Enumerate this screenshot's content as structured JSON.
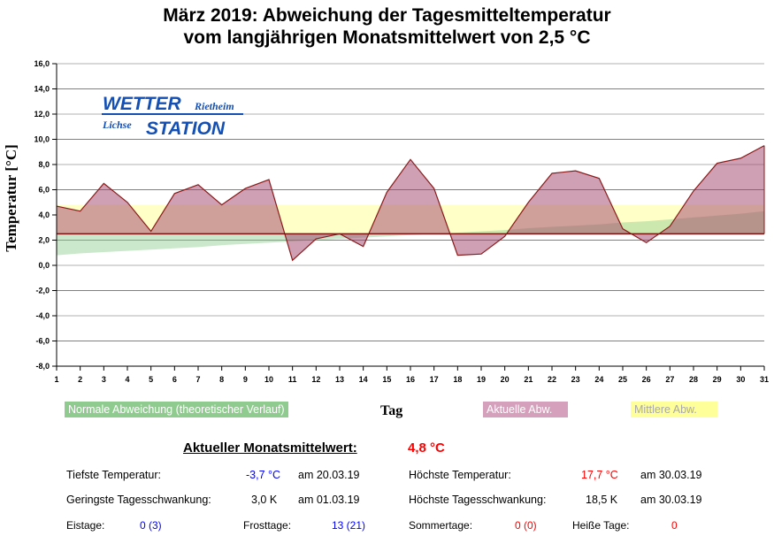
{
  "title_line1": "März 2019: Abweichung der Tagesmitteltemperatur",
  "title_line2": "vom langjährigen Monatsmittelwert von 2,5 °C",
  "logo": {
    "wetter": "WETTER",
    "rietheim": "Rietheim",
    "lichse": "Lichse",
    "station": "STATION"
  },
  "chart_data": {
    "type": "area",
    "xlabel": "Tag",
    "ylabel": "Temperatur [°C]",
    "ylim": [
      -8,
      16
    ],
    "ystep": 2,
    "xlim": [
      1,
      31
    ],
    "baseline": 2.5,
    "mean_deviation_level": 4.8,
    "x": [
      1,
      2,
      3,
      4,
      5,
      6,
      7,
      8,
      9,
      10,
      11,
      12,
      13,
      14,
      15,
      16,
      17,
      18,
      19,
      20,
      21,
      22,
      23,
      24,
      25,
      26,
      27,
      28,
      29,
      30,
      31
    ],
    "series": [
      {
        "name": "Aktuelle Abw.",
        "color": "#b0607f",
        "values": [
          4.7,
          4.3,
          6.5,
          5.0,
          2.7,
          5.7,
          6.4,
          4.8,
          6.1,
          6.8,
          0.4,
          2.1,
          2.5,
          1.5,
          5.8,
          8.4,
          6.1,
          0.8,
          0.9,
          2.3,
          5.0,
          7.3,
          7.5,
          6.9,
          2.9,
          1.8,
          3.1,
          5.9,
          8.1,
          8.5,
          9.5
        ]
      },
      {
        "name": "Normale Abweichung (theoretischer Verlauf)",
        "color": "#8fcb8f",
        "values": [
          0.8,
          0.95,
          1.05,
          1.15,
          1.25,
          1.35,
          1.45,
          1.6,
          1.7,
          1.8,
          1.9,
          2.0,
          2.1,
          2.2,
          2.3,
          2.4,
          2.5,
          2.6,
          2.7,
          2.8,
          2.95,
          3.05,
          3.15,
          3.25,
          3.4,
          3.5,
          3.65,
          3.8,
          3.95,
          4.1,
          4.3
        ]
      },
      {
        "name": "Mittlere Abw.",
        "color": "#ffff99"
      }
    ],
    "legend": [
      "Normale Abweichung (theoretischer Verlauf)",
      "Aktuelle Abw.",
      "Mittlere Abw."
    ],
    "grid": true
  },
  "stats": {
    "monthly_label": "Aktueller Monatsmittelwert:",
    "monthly_value": "4,8 °C",
    "min_label": "Tiefste Temperatur:",
    "min_value": "-3,7 °C",
    "min_date": "am 20.03.19",
    "max_label": "Höchste Temperatur:",
    "max_value": "17,7 °C",
    "max_date": "am 30.03.19",
    "minrange_label": "Geringste Tagesschwankung:",
    "minrange_value": "3,0 K",
    "minrange_date": "am 01.03.19",
    "maxrange_label": "Höchste Tagesschwankung:",
    "maxrange_value": "18,5 K",
    "maxrange_date": "am 30.03.19",
    "eis_label": "Eistage:",
    "eis_value": "0 (3)",
    "frost_label": "Frosttage:",
    "frost_value": "13 (21)",
    "sommer_label": "Sommertage:",
    "sommer_value": "0 (0)",
    "heiss_label": "Heiße Tage:",
    "heiss_value": "0"
  }
}
